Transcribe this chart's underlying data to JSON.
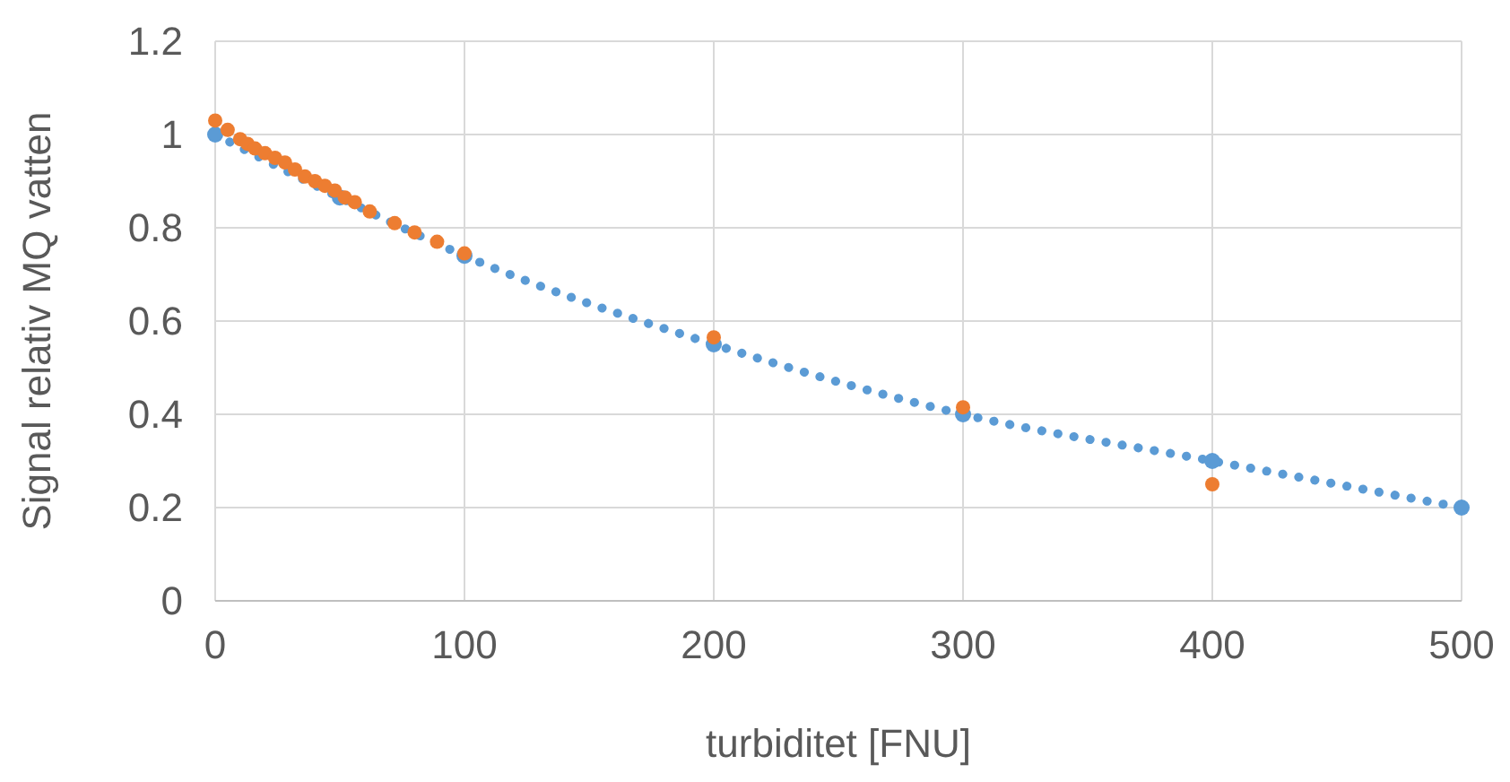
{
  "chart_data": {
    "type": "scatter",
    "xlabel": "turbiditet [FNU]",
    "ylabel": "Signal relativ MQ vatten",
    "xlim": [
      0,
      500
    ],
    "xticks": [
      0,
      100,
      200,
      300,
      400,
      500
    ],
    "ylim": [
      0,
      1.2
    ],
    "yticks": [
      0,
      0.2,
      0.4,
      0.6,
      0.8,
      1,
      1.2
    ],
    "grid": true,
    "series": [
      {
        "type": "line",
        "color": "#5b9bd5",
        "line_style": "dotted",
        "marker": "circle",
        "x": [
          0,
          50,
          100,
          200,
          300,
          400,
          500
        ],
        "values": [
          1,
          0.865,
          0.74,
          0.55,
          0.4,
          0.3,
          0.2
        ]
      },
      {
        "color": "#ed7d31",
        "marker": "circle",
        "x": [
          0,
          5,
          10,
          13,
          16,
          20,
          24,
          28,
          32,
          36,
          40,
          44,
          48,
          52,
          56,
          62,
          72,
          80,
          89,
          100,
          200,
          300,
          400
        ],
        "values": [
          1.03,
          1.01,
          0.99,
          0.98,
          0.97,
          0.96,
          0.95,
          0.94,
          0.925,
          0.91,
          0.9,
          0.89,
          0.88,
          0.865,
          0.855,
          0.835,
          0.81,
          0.79,
          0.77,
          0.745,
          0.565,
          0.415,
          0.25
        ]
      }
    ]
  }
}
